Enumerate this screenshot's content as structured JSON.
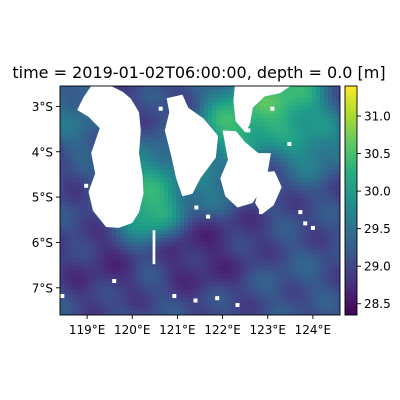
{
  "chart_data": {
    "type": "heatmap",
    "title": "time = 2019-01-02T06:00:00, depth = 0.0 [m]",
    "xlabel": "",
    "ylabel": "",
    "x_ticks": [
      {
        "value": 119,
        "label": "119°E"
      },
      {
        "value": 120,
        "label": "120°E"
      },
      {
        "value": 121,
        "label": "121°E"
      },
      {
        "value": 122,
        "label": "122°E"
      },
      {
        "value": 123,
        "label": "123°E"
      },
      {
        "value": 124,
        "label": "124°E"
      }
    ],
    "y_ticks": [
      {
        "value": -3,
        "label": "3°S"
      },
      {
        "value": -4,
        "label": "4°S"
      },
      {
        "value": -5,
        "label": "5°S"
      },
      {
        "value": -6,
        "label": "6°S"
      },
      {
        "value": -7,
        "label": "7°S"
      }
    ],
    "xlim": [
      118.4,
      124.6
    ],
    "ylim": [
      -7.6,
      -2.55
    ],
    "colorbar": {
      "cmap": "viridis",
      "range": [
        28.35,
        31.4
      ],
      "ticks": [
        {
          "value": 28.5,
          "label": "28.5"
        },
        {
          "value": 29.0,
          "label": "29.0"
        },
        {
          "value": 29.5,
          "label": "29.5"
        },
        {
          "value": 30.0,
          "label": "30.0"
        },
        {
          "value": 30.5,
          "label": "30.5"
        },
        {
          "value": 31.0,
          "label": "31.0"
        }
      ]
    },
    "field_features": [
      {
        "lon": 123.4,
        "lat": -2.8,
        "value": 30.9
      },
      {
        "lon": 122.9,
        "lat": -3.0,
        "value": 30.6
      },
      {
        "lon": 123.9,
        "lat": -3.7,
        "value": 30.2
      },
      {
        "lon": 122.3,
        "lat": -3.4,
        "value": 30.8
      },
      {
        "lon": 120.4,
        "lat": -4.6,
        "value": 30.0
      },
      {
        "lon": 120.3,
        "lat": -5.1,
        "value": 31.0
      },
      {
        "lon": 121.6,
        "lat": -4.6,
        "value": 29.8
      },
      {
        "lon": 118.8,
        "lat": -3.2,
        "value": 29.6
      },
      {
        "lon": 121.5,
        "lat": -6.3,
        "value": 28.6
      },
      {
        "lon": 122.2,
        "lat": -6.0,
        "value": 28.8
      },
      {
        "lon": 119.3,
        "lat": -6.5,
        "value": 28.7
      },
      {
        "lon": 123.6,
        "lat": -6.8,
        "value": 29.2
      },
      {
        "lon": 118.9,
        "lat": -5.5,
        "value": 29.0
      }
    ],
    "land_polygons": [
      {
        "name": "",
        "points": [
          [
            119.09,
            -2.55
          ],
          [
            119.53,
            -2.55
          ],
          [
            119.79,
            -2.68
          ],
          [
            119.97,
            -2.83
          ],
          [
            120.15,
            -3.13
          ],
          [
            120.19,
            -3.53
          ],
          [
            120.15,
            -4.03
          ],
          [
            120.23,
            -4.53
          ],
          [
            120.25,
            -4.93
          ],
          [
            120.15,
            -5.33
          ],
          [
            120.0,
            -5.57
          ],
          [
            119.7,
            -5.68
          ],
          [
            119.42,
            -5.66
          ],
          [
            119.13,
            -5.3
          ],
          [
            119.03,
            -4.88
          ],
          [
            119.18,
            -4.48
          ],
          [
            119.09,
            -4.03
          ],
          [
            119.28,
            -3.48
          ],
          [
            119.03,
            -3.23
          ],
          [
            118.78,
            -3.08
          ],
          [
            118.92,
            -2.8
          ]
        ]
      },
      {
        "name": "",
        "points": [
          [
            120.76,
            -2.82
          ],
          [
            121.11,
            -2.74
          ],
          [
            121.24,
            -3.03
          ],
          [
            121.58,
            -3.27
          ],
          [
            121.9,
            -3.65
          ],
          [
            121.85,
            -4.13
          ],
          [
            121.51,
            -4.58
          ],
          [
            121.33,
            -4.93
          ],
          [
            121.11,
            -4.98
          ],
          [
            120.97,
            -4.58
          ],
          [
            120.86,
            -4.08
          ],
          [
            120.72,
            -3.53
          ],
          [
            120.82,
            -3.13
          ]
        ]
      },
      {
        "name": "",
        "points": [
          [
            122.27,
            -2.55
          ],
          [
            123.51,
            -2.55
          ],
          [
            123.27,
            -2.71
          ],
          [
            122.93,
            -2.78
          ],
          [
            122.67,
            -3.03
          ],
          [
            122.61,
            -3.38
          ],
          [
            122.51,
            -3.58
          ],
          [
            122.29,
            -3.33
          ],
          [
            122.24,
            -2.88
          ]
        ]
      },
      {
        "name": "",
        "points": [
          [
            122.0,
            -3.53
          ],
          [
            122.3,
            -3.55
          ],
          [
            122.49,
            -3.78
          ],
          [
            122.79,
            -4.03
          ],
          [
            123.07,
            -4.03
          ],
          [
            123.01,
            -4.38
          ],
          [
            122.94,
            -4.73
          ],
          [
            122.66,
            -5.13
          ],
          [
            122.33,
            -5.23
          ],
          [
            122.06,
            -4.98
          ],
          [
            121.95,
            -4.58
          ],
          [
            122.12,
            -4.18
          ]
        ]
      },
      {
        "name": "",
        "points": [
          [
            122.84,
            -4.45
          ],
          [
            123.15,
            -4.43
          ],
          [
            123.31,
            -4.78
          ],
          [
            123.13,
            -5.18
          ],
          [
            122.87,
            -5.38
          ],
          [
            122.72,
            -5.13
          ],
          [
            122.81,
            -4.78
          ]
        ]
      },
      {
        "name": "",
        "points": [
          [
            120.45,
            -5.73
          ],
          [
            120.51,
            -5.73
          ],
          [
            120.51,
            -6.48
          ],
          [
            120.45,
            -6.48
          ]
        ]
      }
    ],
    "islet_points": [
      [
        118.98,
        -4.75
      ],
      [
        120.93,
        -7.18
      ],
      [
        121.4,
        -7.28
      ],
      [
        121.88,
        -7.23
      ],
      [
        118.45,
        -7.18
      ],
      [
        119.6,
        -6.85
      ],
      [
        123.72,
        -5.33
      ],
      [
        123.83,
        -5.58
      ],
      [
        124.0,
        -5.68
      ],
      [
        121.42,
        -5.23
      ],
      [
        122.85,
        -5.33
      ],
      [
        121.68,
        -5.43
      ],
      [
        122.33,
        -7.38
      ],
      [
        123.1,
        -3.05
      ],
      [
        123.48,
        -3.83
      ],
      [
        120.63,
        -3.05
      ],
      [
        122.57,
        -3.53
      ]
    ]
  }
}
